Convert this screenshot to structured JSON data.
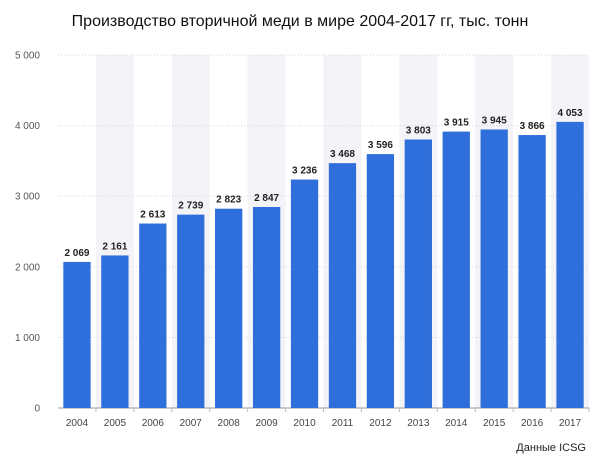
{
  "chart_data": {
    "type": "bar",
    "title": "Производство вторичной меди в мире 2004-2017 гг, тыс. тонн",
    "source": "Данные ICSG",
    "categories": [
      "2004",
      "2005",
      "2006",
      "2007",
      "2008",
      "2009",
      "2010",
      "2011",
      "2012",
      "2013",
      "2014",
      "2015",
      "2016",
      "2017"
    ],
    "values": [
      2069,
      2161,
      2613,
      2739,
      2823,
      2847,
      3236,
      3468,
      3596,
      3803,
      3915,
      3945,
      3866,
      4053
    ],
    "value_labels": [
      "2 069",
      "2 161",
      "2 613",
      "2 739",
      "2 823",
      "2 847",
      "3 236",
      "3 468",
      "3 596",
      "3 803",
      "3 915",
      "3 945",
      "3 866",
      "4 053"
    ],
    "yticks": [
      0,
      1000,
      2000,
      3000,
      4000,
      5000
    ],
    "ytick_labels": [
      "0",
      "1 000",
      "2 000",
      "3 000",
      "4 000",
      "5 000"
    ],
    "ylim": [
      0,
      5000
    ],
    "xlabel": "",
    "ylabel": "",
    "bar_color": "#2f6fdb",
    "stripe_color": "#f4f4f8",
    "grid": true
  }
}
